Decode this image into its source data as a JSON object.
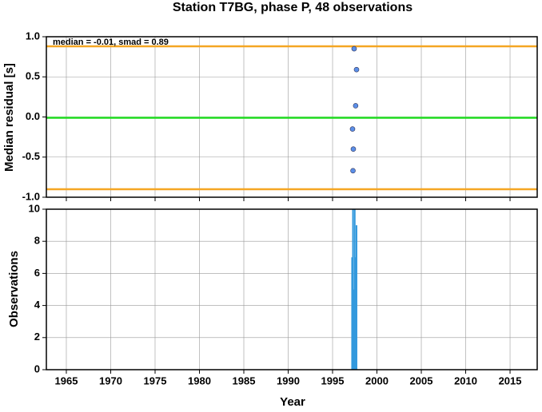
{
  "chart_data": [
    {
      "type": "scatter",
      "title": "Station T7BG, phase P, 48 observations",
      "y_label": "Median residual [s]",
      "annotation": "median = -0.01, smad = 0.89",
      "x": [
        1997.43,
        1997.7,
        1997.6,
        1997.25,
        1997.34,
        1997.3
      ],
      "values": [
        0.85,
        0.59,
        0.14,
        -0.15,
        -0.4,
        -0.67
      ],
      "color": "#5b8fe8",
      "lines": [
        {
          "value": 0.88,
          "color": "#f5a623"
        },
        {
          "value": -0.01,
          "color": "#22dd22"
        },
        {
          "value": -0.9,
          "color": "#f5a623"
        }
      ],
      "xlim": [
        1962.75,
        2018.06
      ],
      "xticks": [
        1965,
        1970,
        1975,
        1980,
        1985,
        1990,
        1995,
        2000,
        2005,
        2010,
        2015
      ],
      "ylim": [
        -1,
        1
      ],
      "yticks": [
        {
          "value": -1,
          "label": "-1.0"
        },
        -0.5,
        {
          "value": 0,
          "label": "0.0"
        },
        0.5,
        {
          "value": 1,
          "label": "1.0"
        }
      ],
      "grid": true
    },
    {
      "type": "bar",
      "x_label": "Year",
      "y_label": "Observations",
      "x": [
        1997.2,
        1997.3,
        1997.4,
        1997.5,
        1997.6,
        1997.7
      ],
      "values": [
        7,
        10,
        5,
        10,
        7,
        9
      ],
      "color": "#3399dd",
      "xlim": [
        1962.75,
        2018.06
      ],
      "xticks": [
        1965,
        1970,
        1975,
        1980,
        1985,
        1990,
        1995,
        2000,
        2005,
        2010,
        2015
      ],
      "ylim": [
        0,
        10
      ],
      "yticks": [
        0,
        2,
        4,
        6,
        8,
        10
      ],
      "grid": true
    }
  ]
}
